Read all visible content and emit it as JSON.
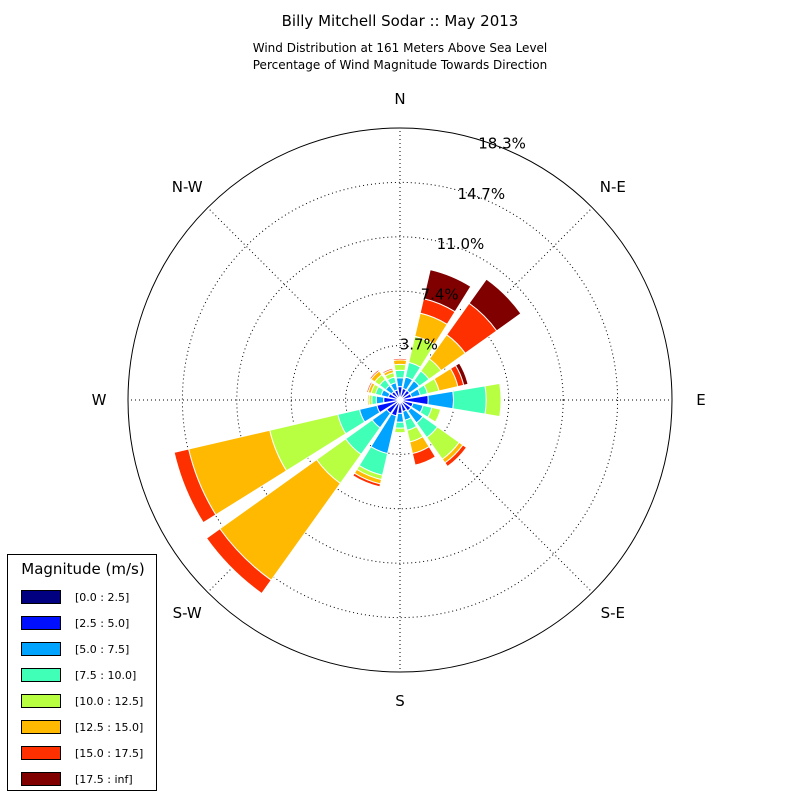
{
  "chart_data": {
    "type": "windrose",
    "title": "Billy Mitchell Sodar :: May 2013",
    "subtitle": [
      "Wind Distribution at 161 Meters Above Sea Level",
      "Percentage of Wind Magnitude Towards Direction"
    ],
    "directions": [
      "N",
      "NNE",
      "NE",
      "ENE",
      "E",
      "ESE",
      "SE",
      "SSE",
      "S",
      "SSW",
      "SW",
      "WSW",
      "W",
      "WNW",
      "NW",
      "NNW"
    ],
    "direction_labels": [
      "N",
      "N-E",
      "E",
      "S-E",
      "S",
      "S-W",
      "W",
      "N-W"
    ],
    "radial_ticks": [
      "3.7%",
      "7.4%",
      "11.0%",
      "14.7%",
      "18.3%"
    ],
    "radial_max": 18.3,
    "grid": true,
    "legend_title": "Magnitude (m/s)",
    "legend_position": "lower-left",
    "bins": [
      {
        "label": "[0.0 : 2.5]",
        "color": "#000080"
      },
      {
        "label": "[2.5 : 5.0]",
        "color": "#0010ff"
      },
      {
        "label": "[5.0 : 7.5]",
        "color": "#00a4ff"
      },
      {
        "label": "[7.5 : 10.0]",
        "color": "#40ffb7"
      },
      {
        "label": "[10.0 : 12.5]",
        "color": "#b7ff40"
      },
      {
        "label": "[12.5 : 15.0]",
        "color": "#ffb900"
      },
      {
        "label": "[15.0 : 17.5]",
        "color": "#ff3000"
      },
      {
        "label": "[17.5 : inf]",
        "color": "#800000"
      }
    ],
    "series": [
      {
        "direction": "N",
        "values": [
          0.1,
          0.8,
          0.6,
          0.5,
          0.4,
          0.3,
          0.1,
          0.0
        ]
      },
      {
        "direction": "NNE",
        "values": [
          0.2,
          0.6,
          0.8,
          1.0,
          1.8,
          1.6,
          1.0,
          2.0
        ]
      },
      {
        "direction": "NE",
        "values": [
          0.2,
          0.6,
          0.8,
          0.8,
          1.0,
          2.0,
          2.6,
          2.0
        ]
      },
      {
        "direction": "ENE",
        "values": [
          0.2,
          0.6,
          0.6,
          0.5,
          0.8,
          1.3,
          0.4,
          0.3
        ]
      },
      {
        "direction": "E",
        "values": [
          0.1,
          1.8,
          1.7,
          2.2,
          1.0,
          0.0,
          0.0,
          0.0
        ]
      },
      {
        "direction": "ESE",
        "values": [
          0.1,
          0.8,
          0.7,
          0.6,
          0.6,
          0.0,
          0.0,
          0.0
        ]
      },
      {
        "direction": "SE",
        "values": [
          0.1,
          0.8,
          1.0,
          1.2,
          1.8,
          0.3,
          0.3,
          0.0
        ]
      },
      {
        "direction": "SSE",
        "values": [
          0.1,
          0.7,
          0.6,
          0.7,
          0.8,
          0.8,
          0.8,
          0.0
        ]
      },
      {
        "direction": "S",
        "values": [
          0.1,
          0.8,
          0.6,
          0.4,
          0.3,
          0.0,
          0.0,
          0.0
        ]
      },
      {
        "direction": "SSW",
        "values": [
          0.1,
          1.0,
          2.6,
          1.5,
          0.3,
          0.3,
          0.2,
          0.0
        ]
      },
      {
        "direction": "SW",
        "values": [
          0.1,
          1.0,
          1.2,
          2.2,
          2.4,
          8.0,
          1.1,
          0.0
        ]
      },
      {
        "direction": "WSW",
        "values": [
          0.1,
          1.5,
          1.2,
          1.5,
          4.7,
          5.6,
          1.0,
          0.0
        ]
      },
      {
        "direction": "W",
        "values": [
          0.1,
          1.0,
          0.5,
          0.3,
          0.2,
          0.1,
          0.0,
          0.0
        ]
      },
      {
        "direction": "WNW",
        "values": [
          0.1,
          0.7,
          0.5,
          0.4,
          0.3,
          0.2,
          0.1,
          0.0
        ]
      },
      {
        "direction": "NW",
        "values": [
          0.1,
          0.6,
          0.5,
          0.5,
          0.4,
          0.3,
          0.1,
          0.0
        ]
      },
      {
        "direction": "NNW",
        "values": [
          0.1,
          0.6,
          0.5,
          0.4,
          0.3,
          0.2,
          0.1,
          0.0
        ]
      }
    ]
  }
}
